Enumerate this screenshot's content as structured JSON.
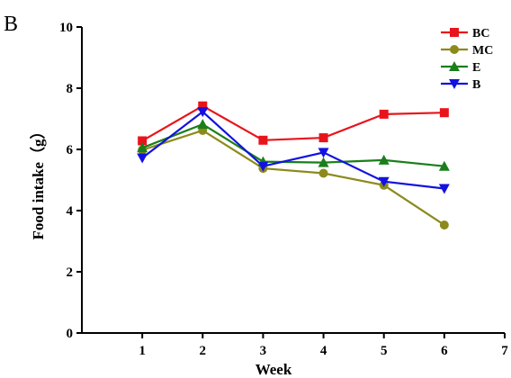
{
  "panel_label": "B",
  "chart_data": {
    "type": "line",
    "xlabel": "Week",
    "ylabel": "Food intake（g）",
    "xlim": [
      0,
      7
    ],
    "ylim": [
      0,
      10
    ],
    "x_ticks": [
      1,
      2,
      3,
      4,
      5,
      6,
      7
    ],
    "y_ticks": [
      0,
      2,
      4,
      6,
      8,
      10
    ],
    "x_tick_labels": [
      "1",
      "2",
      "3",
      "4",
      "5",
      "6",
      "7"
    ],
    "y_tick_labels": [
      "0",
      "2",
      "4",
      "6",
      "8",
      "10"
    ],
    "grid": false,
    "legend": "top-right",
    "x": [
      1,
      2,
      3,
      4,
      5,
      6
    ],
    "series": [
      {
        "name": "BC",
        "color": "#e8141c",
        "marker": "square",
        "values": [
          6.28,
          7.42,
          6.3,
          6.38,
          7.15,
          7.2
        ]
      },
      {
        "name": "MC",
        "color": "#8c8a1c",
        "marker": "circle",
        "values": [
          5.98,
          6.62,
          5.38,
          5.22,
          4.83,
          3.53
        ]
      },
      {
        "name": "E",
        "color": "#1a7f1a",
        "marker": "triangle-up",
        "values": [
          6.05,
          6.82,
          5.6,
          5.57,
          5.65,
          5.45
        ]
      },
      {
        "name": "B",
        "color": "#1212e0",
        "marker": "triangle-down",
        "values": [
          5.72,
          7.23,
          5.45,
          5.9,
          4.95,
          4.72
        ]
      }
    ]
  }
}
